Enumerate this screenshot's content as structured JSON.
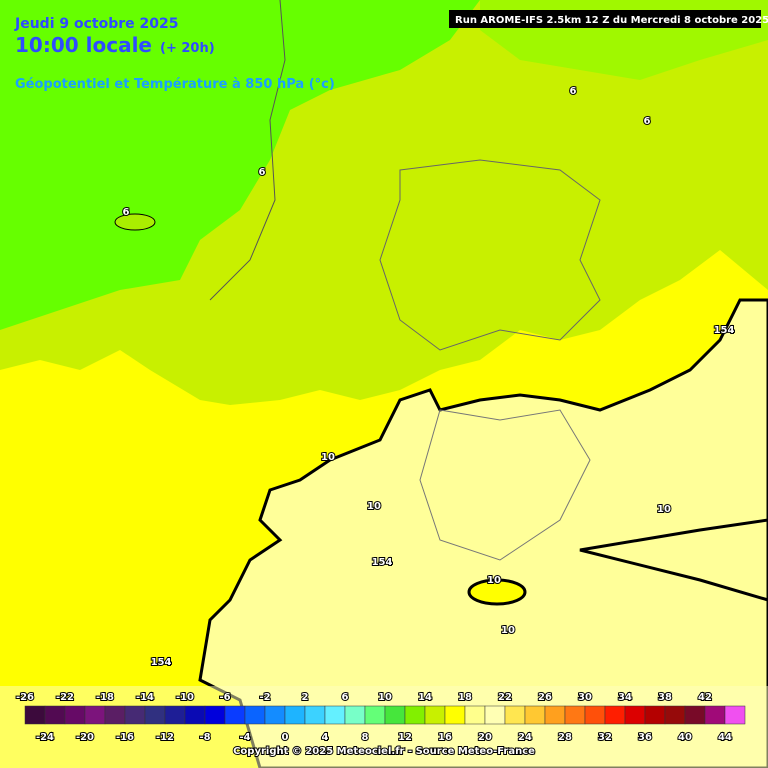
{
  "header": {
    "date": "Jeudi 9 octobre 2025",
    "time": "10:00 locale",
    "lead": "(+ 20h)",
    "subtitle": "Géopotentiel et Température à 850 hPa (°c)",
    "run": "Run AROME-IFS 2.5km 12 Z du Mercredi 8 octobre 2025"
  },
  "map": {
    "labels": [
      "6",
      "6",
      "6",
      "6",
      "154",
      "154",
      "154",
      "10",
      "10",
      "10",
      "10",
      "10"
    ]
  },
  "scale": {
    "top_labels": [
      -26,
      -22,
      -18,
      -14,
      -10,
      -6,
      -2,
      2,
      6,
      10,
      14,
      18,
      22,
      26,
      30,
      34,
      38,
      42
    ],
    "bottom_labels": [
      -24,
      -20,
      -16,
      -12,
      -8,
      -4,
      0,
      4,
      8,
      12,
      16,
      20,
      24,
      28,
      32,
      36,
      40,
      44
    ]
  },
  "footer": {
    "copyright": "Copyright © 2025 Meteociel.fr - Source Meteo-France"
  }
}
